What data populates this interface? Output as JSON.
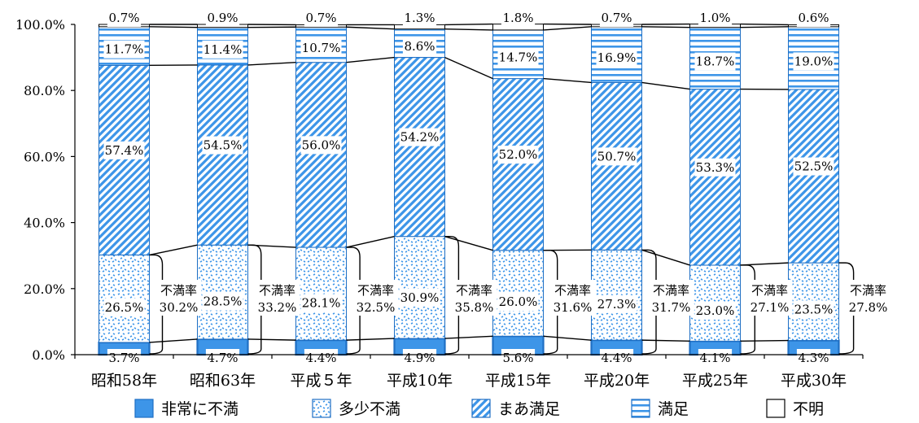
{
  "chart_data": {
    "type": "bar",
    "stacked": true,
    "categories": [
      "昭和58年",
      "昭和63年",
      "平成５年",
      "平成10年",
      "平成15年",
      "平成20年",
      "平成25年",
      "平成30年"
    ],
    "series": [
      {
        "name": "非常に不満",
        "values": [
          3.7,
          4.7,
          4.4,
          4.9,
          5.6,
          4.4,
          4.1,
          4.3
        ],
        "labels": [
          "3.7%",
          "4.7%",
          "4.4%",
          "4.9%",
          "5.6%",
          "4.4%",
          "4.1%",
          "4.3%"
        ]
      },
      {
        "name": "多少不満",
        "values": [
          26.5,
          28.5,
          28.1,
          30.9,
          26.0,
          27.3,
          23.0,
          23.5
        ],
        "labels": [
          "26.5%",
          "28.5%",
          "28.1%",
          "30.9%",
          "26.0%",
          "27.3%",
          "23.0%",
          "23.5%"
        ]
      },
      {
        "name": "まあ満足",
        "values": [
          57.4,
          54.5,
          56.0,
          54.2,
          52.0,
          50.7,
          53.3,
          52.5
        ],
        "labels": [
          "57.4%",
          "54.5%",
          "56.0%",
          "54.2%",
          "52.0%",
          "50.7%",
          "53.3%",
          "52.5%"
        ]
      },
      {
        "name": "満足",
        "values": [
          11.7,
          11.4,
          10.7,
          8.6,
          14.7,
          16.9,
          18.7,
          19.0
        ],
        "labels": [
          "11.7%",
          "11.4%",
          "10.7%",
          "8.6%",
          "14.7%",
          "16.9%",
          "18.7%",
          "19.0%"
        ]
      },
      {
        "name": "不明",
        "values": [
          0.7,
          0.9,
          0.7,
          1.3,
          1.8,
          0.7,
          1.0,
          0.6
        ],
        "labels": [
          "0.7%",
          "0.9%",
          "0.7%",
          "1.3%",
          "1.8%",
          "0.7%",
          "1.0%",
          "0.6%"
        ]
      }
    ],
    "dissatisfaction": {
      "label": "不満率",
      "values": [
        30.2,
        33.2,
        32.5,
        35.8,
        31.6,
        31.7,
        27.1,
        27.8
      ],
      "labels": [
        "30.2%",
        "33.2%",
        "32.5%",
        "35.8%",
        "31.6%",
        "31.7%",
        "27.1%",
        "27.8%"
      ]
    },
    "ylim": [
      0,
      100
    ],
    "yticks": [
      0,
      20,
      40,
      60,
      80,
      100
    ],
    "ytick_labels": [
      "0.0%",
      "20.0%",
      "40.0%",
      "60.0%",
      "80.0%",
      "100.0%"
    ],
    "legend_position": "bottom",
    "colors": {
      "fill": "#3d95e8",
      "stroke": "#1f6fc4",
      "line": "#000000"
    }
  }
}
